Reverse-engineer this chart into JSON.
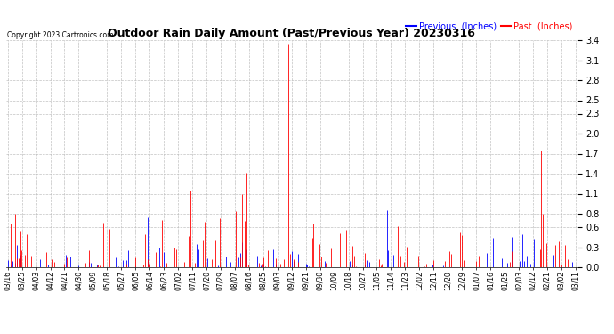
{
  "title": "Outdoor Rain Daily Amount (Past/Previous Year) 20230316",
  "copyright": "Copyright 2023 Cartronics.com",
  "legend_previous": "Previous",
  "legend_past": "Past",
  "legend_units": "(Inches)",
  "color_previous": "blue",
  "color_past": "red",
  "color_background": "white",
  "color_grid": "#aaaaaa",
  "ylim": [
    0.0,
    3.4
  ],
  "yticks": [
    0.0,
    0.3,
    0.6,
    0.8,
    1.1,
    1.4,
    1.7,
    2.0,
    2.3,
    2.5,
    2.8,
    3.1,
    3.4
  ],
  "x_labels": [
    "03/16",
    "03/25",
    "04/03",
    "04/12",
    "04/21",
    "04/30",
    "05/09",
    "05/18",
    "05/27",
    "06/05",
    "06/14",
    "06/23",
    "07/02",
    "07/11",
    "07/20",
    "07/29",
    "08/07",
    "08/16",
    "08/25",
    "09/03",
    "09/12",
    "09/21",
    "09/30",
    "10/09",
    "10/18",
    "10/27",
    "11/05",
    "11/14",
    "11/23",
    "12/02",
    "12/11",
    "12/20",
    "12/29",
    "01/07",
    "01/16",
    "01/25",
    "02/03",
    "02/12",
    "02/21",
    "03/02",
    "03/11"
  ],
  "num_points": 365,
  "fig_width": 6.9,
  "fig_height": 3.75,
  "dpi": 100
}
